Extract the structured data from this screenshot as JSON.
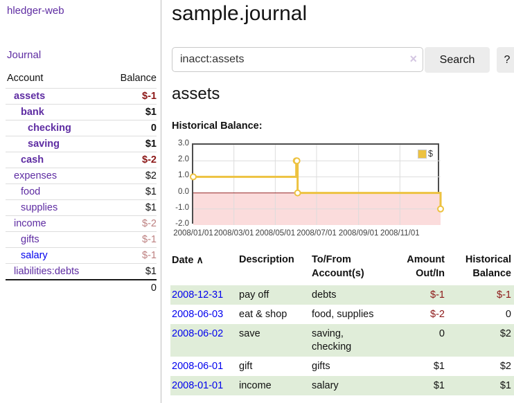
{
  "palette": {
    "brand_purple": "#5e2ca2",
    "link_blue": "#0000ee",
    "negative_strong": "#8c1717",
    "negative_soft": "#bd8080",
    "row_stripe_green": "#e0edd9",
    "series_gold": "#edc240",
    "chart_negative_fill": "#fbdcdc",
    "chart_zero_line": "#952525",
    "chart_grid": "#dcdcdc",
    "chart_border": "#4d4d4d"
  },
  "sidebar": {
    "brand": "hledger-web",
    "nav": [
      {
        "label": "Journal"
      }
    ],
    "table": {
      "headers": {
        "account": "Account",
        "balance": "Balance"
      },
      "accounts": [
        {
          "name": "assets",
          "depth": 1,
          "bold": true,
          "balance": "$-1",
          "balance_tone": "negative-strong"
        },
        {
          "name": "bank",
          "depth": 2,
          "bold": true,
          "balance": "$1",
          "balance_tone": "normal"
        },
        {
          "name": "checking",
          "depth": 3,
          "bold": true,
          "balance": "0",
          "balance_tone": "normal"
        },
        {
          "name": "saving",
          "depth": 3,
          "bold": true,
          "balance": "$1",
          "balance_tone": "normal"
        },
        {
          "name": "cash",
          "depth": 2,
          "bold": true,
          "balance": "$-2",
          "balance_tone": "negative-strong"
        },
        {
          "name": "expenses",
          "depth": 1,
          "bold": false,
          "balance": "$2",
          "balance_tone": "normal"
        },
        {
          "name": "food",
          "depth": 2,
          "bold": false,
          "balance": "$1",
          "balance_tone": "normal"
        },
        {
          "name": "supplies",
          "depth": 2,
          "bold": false,
          "balance": "$1",
          "balance_tone": "normal"
        },
        {
          "name": "income",
          "depth": 1,
          "bold": false,
          "balance": "$-2",
          "balance_tone": "negative-soft"
        },
        {
          "name": "gifts",
          "depth": 2,
          "bold": false,
          "balance": "$-1",
          "balance_tone": "negative-soft"
        },
        {
          "name": "salary",
          "depth": 2,
          "bold": false,
          "balance": "$-1",
          "balance_tone": "negative-soft",
          "link_tone": "blue"
        },
        {
          "name": "liabilities:debts",
          "depth": 1,
          "bold": false,
          "balance": "$1",
          "balance_tone": "normal"
        }
      ],
      "total": "0"
    }
  },
  "main": {
    "title": "sample.journal",
    "search": {
      "value": "inacct:assets",
      "clear_icon": "×",
      "search_button": "Search",
      "help_button": "?"
    },
    "account_heading": "assets",
    "chart_heading": "Historical Balance:"
  },
  "chart_data": {
    "type": "line",
    "style": "steps",
    "title": "Historical Balance:",
    "series": [
      {
        "name": "$",
        "color": "#edc240",
        "points": [
          [
            "2008-01-01",
            1
          ],
          [
            "2008-06-01",
            2
          ],
          [
            "2008-06-02",
            2
          ],
          [
            "2008-06-03",
            0
          ],
          [
            "2008-12-31",
            -1
          ]
        ]
      }
    ],
    "xlim": [
      "2008-01-01",
      "2008-12-31"
    ],
    "ylim": [
      -2,
      3
    ],
    "x_tick_labels": [
      "2008/01/01",
      "2008/03/01",
      "2008/05/01",
      "2008/07/01",
      "2008/09/01",
      "2008/11/01"
    ],
    "y_tick_values": [
      3,
      2,
      1,
      0,
      -1,
      -2
    ],
    "y_tick_labels": [
      "3.0",
      "2.0",
      "1.0",
      "0.0",
      "-1.0",
      "-2.0"
    ],
    "grid": true,
    "legend": {
      "label": "$",
      "position": "top-right"
    },
    "negative_region": {
      "from": 0,
      "to": -2
    }
  },
  "register": {
    "headers": {
      "date": "Date",
      "sort_icon": "∧",
      "description": "Description",
      "to_from": "To/From\nAccount(s)",
      "amount": "Amount\nOut/In",
      "balance": "Historical\nBalance"
    },
    "rows": [
      {
        "date": "2008-12-31",
        "description": "pay off",
        "to_from": "debts",
        "amount": "$-1",
        "amount_tone": "negative",
        "balance": "$-1",
        "balance_tone": "negative"
      },
      {
        "date": "2008-06-03",
        "description": "eat & shop",
        "to_from": "food, supplies",
        "amount": "$-2",
        "amount_tone": "negative",
        "balance": "0",
        "balance_tone": "normal"
      },
      {
        "date": "2008-06-02",
        "description": "save",
        "to_from": "saving,\nchecking",
        "amount": "0",
        "amount_tone": "normal",
        "balance": "$2",
        "balance_tone": "normal"
      },
      {
        "date": "2008-06-01",
        "description": "gift",
        "to_from": "gifts",
        "amount": "$1",
        "amount_tone": "normal",
        "balance": "$2",
        "balance_tone": "normal"
      },
      {
        "date": "2008-01-01",
        "description": "income",
        "to_from": "salary",
        "amount": "$1",
        "amount_tone": "normal",
        "balance": "$1",
        "balance_tone": "normal"
      }
    ]
  }
}
